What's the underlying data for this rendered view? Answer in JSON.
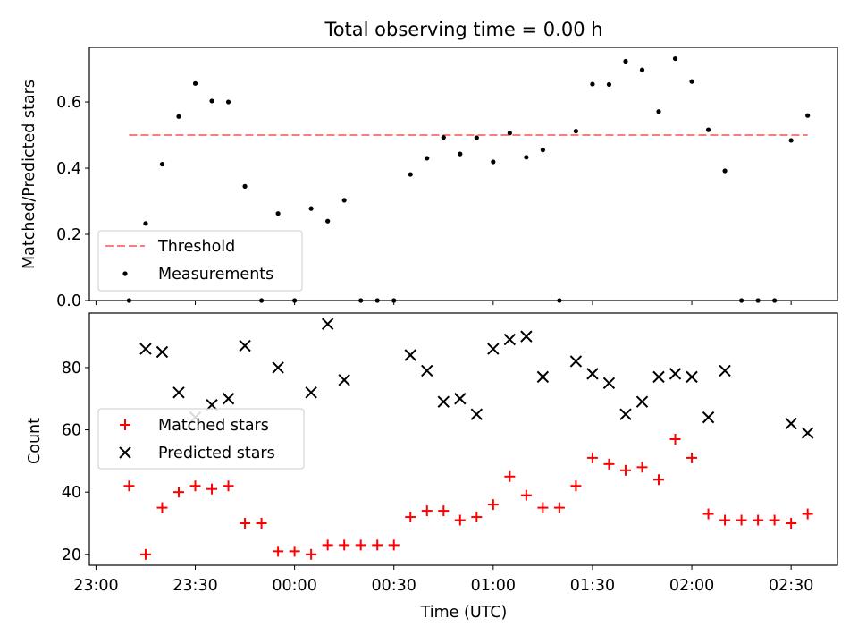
{
  "chart_data": [
    {
      "type": "scatter",
      "title": "Total observing time = 0.00 h",
      "xlabel": "",
      "ylabel": "Matched/Predicted stars",
      "ylim": [
        0,
        0.765
      ],
      "yticks": [
        0.0,
        0.2,
        0.4,
        0.6
      ],
      "ytick_labels": [
        "0.0",
        "0.2",
        "0.4",
        "0.6"
      ],
      "x_tick_labels_visible": false,
      "threshold": {
        "name": "Threshold",
        "value": 0.5,
        "color": "#ff7b7b",
        "style": "dashed"
      },
      "legend": {
        "position": "lower-left",
        "entries": [
          "Threshold",
          "Measurements"
        ]
      },
      "series": [
        {
          "name": "Measurements",
          "color": "#000000",
          "marker": "dot",
          "x": [
            "23:10",
            "23:15",
            "23:20",
            "23:25",
            "23:30",
            "23:35",
            "23:40",
            "23:45",
            "23:50",
            "23:55",
            "00:00",
            "00:05",
            "00:10",
            "00:15",
            "00:20",
            "00:25",
            "00:30",
            "00:35",
            "00:40",
            "00:45",
            "00:50",
            "00:55",
            "01:00",
            "01:05",
            "01:10",
            "01:15",
            "01:20",
            "01:25",
            "01:30",
            "01:35",
            "01:40",
            "01:45",
            "01:50",
            "01:55",
            "02:00",
            "02:05",
            "02:10",
            "02:15",
            "02:20",
            "02:25",
            "02:30",
            "02:35"
          ],
          "y": [
            0.0,
            0.233,
            0.412,
            0.556,
            0.656,
            0.603,
            0.6,
            0.345,
            0.0,
            0.263,
            0.0,
            0.278,
            0.24,
            0.303,
            0.0,
            0.0,
            0.0,
            0.381,
            0.43,
            0.493,
            0.443,
            0.492,
            0.419,
            0.506,
            0.433,
            0.455,
            0.0,
            0.512,
            0.654,
            0.653,
            0.723,
            0.697,
            0.571,
            0.731,
            0.662,
            0.516,
            0.392,
            0.0,
            0.0,
            0.0,
            0.484,
            0.559
          ]
        }
      ]
    },
    {
      "type": "scatter",
      "title": "",
      "xlabel": "Time (UTC)",
      "ylabel": "Count",
      "ylim": [
        16.5,
        97.5
      ],
      "yticks": [
        20,
        40,
        60,
        80
      ],
      "ytick_labels": [
        "20",
        "40",
        "60",
        "80"
      ],
      "xticks": [
        "23:00",
        "23:30",
        "00:00",
        "00:30",
        "01:00",
        "01:30",
        "02:00",
        "02:30"
      ],
      "xlim": [
        "22:58",
        "02:44"
      ],
      "legend": {
        "position": "center-left",
        "entries": [
          "Matched stars",
          "Predicted stars"
        ]
      },
      "series": [
        {
          "name": "Matched stars",
          "color": "#ff0000",
          "marker": "plus",
          "x": [
            "23:10",
            "23:15",
            "23:20",
            "23:25",
            "23:30",
            "23:35",
            "23:40",
            "23:45",
            "23:50",
            "23:55",
            "00:00",
            "00:05",
            "00:10",
            "00:15",
            "00:20",
            "00:25",
            "00:30",
            "00:35",
            "00:40",
            "00:45",
            "00:50",
            "00:55",
            "01:00",
            "01:05",
            "01:10",
            "01:15",
            "01:20",
            "01:25",
            "01:30",
            "01:35",
            "01:40",
            "01:45",
            "01:50",
            "01:55",
            "02:00",
            "02:05",
            "02:10",
            "02:15",
            "02:20",
            "02:25",
            "02:30",
            "02:35"
          ],
          "y": [
            42,
            20,
            35,
            40,
            42,
            41,
            42,
            30,
            30,
            21,
            21,
            20,
            23,
            23,
            23,
            23,
            23,
            32,
            34,
            34,
            31,
            32,
            36,
            45,
            39,
            35,
            35,
            42,
            51,
            49,
            47,
            48,
            44,
            57,
            51,
            33,
            31,
            31,
            31,
            31,
            30,
            33
          ]
        },
        {
          "name": "Predicted stars",
          "color": "#000000",
          "marker": "x",
          "x": [
            "23:15",
            "23:20",
            "23:25",
            "23:30",
            "23:35",
            "23:40",
            "23:45",
            "23:55",
            "00:05",
            "00:10",
            "00:15",
            "00:35",
            "00:40",
            "00:45",
            "00:50",
            "00:55",
            "01:00",
            "01:05",
            "01:10",
            "01:15",
            "01:25",
            "01:30",
            "01:35",
            "01:40",
            "01:45",
            "01:50",
            "01:55",
            "02:00",
            "02:05",
            "02:10",
            "02:30",
            "02:35"
          ],
          "y": [
            86,
            85,
            72,
            64,
            68,
            70,
            87,
            80,
            72,
            94,
            76,
            84,
            79,
            69,
            70,
            65,
            86,
            89,
            90,
            77,
            82,
            78,
            75,
            65,
            69,
            77,
            78,
            77,
            64,
            79,
            62,
            59
          ]
        }
      ]
    }
  ]
}
